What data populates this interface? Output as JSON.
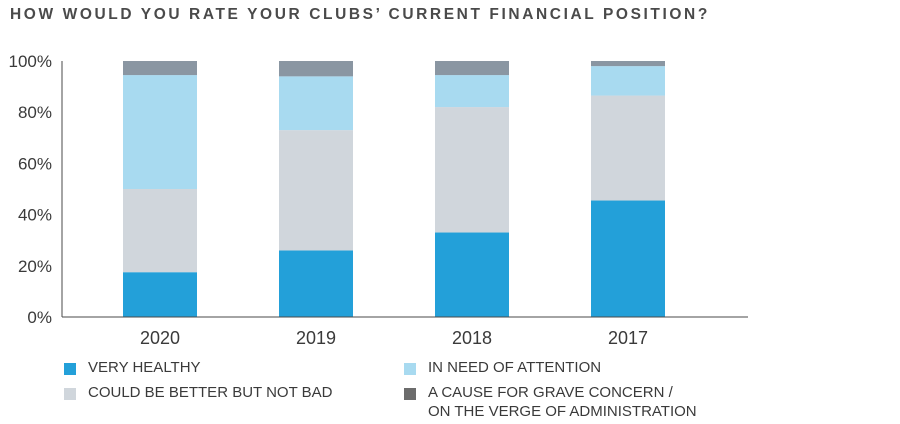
{
  "chart_data": {
    "type": "bar",
    "stacked": true,
    "title": "HOW WOULD YOU RATE YOUR CLUBS’ CURRENT FINANCIAL POSITION?",
    "categories": [
      "2020",
      "2019",
      "2018",
      "2017"
    ],
    "ylim": [
      0,
      100
    ],
    "yticks": [
      "0%",
      "20%",
      "40%",
      "60%",
      "80%",
      "100%"
    ],
    "grid": false,
    "legend_position": "bottom",
    "series": [
      {
        "name": "VERY HEALTHY",
        "color": "#23a0d9",
        "values": [
          17.5,
          26,
          33,
          45.5
        ]
      },
      {
        "name": "COULD BE BETTER BUT NOT BAD",
        "color": "#d0d6dc",
        "values": [
          32.5,
          47,
          49,
          41
        ]
      },
      {
        "name": "IN NEED OF ATTENTION",
        "color": "#a8daf0",
        "values": [
          44.5,
          21,
          12.5,
          11.5
        ]
      },
      {
        "name": "A CAUSE FOR GRAVE CONCERN /\nON THE VERGE OF ADMINISTRATION",
        "color": "#8a96a2",
        "values": [
          5.5,
          6,
          5.5,
          2
        ]
      }
    ]
  }
}
